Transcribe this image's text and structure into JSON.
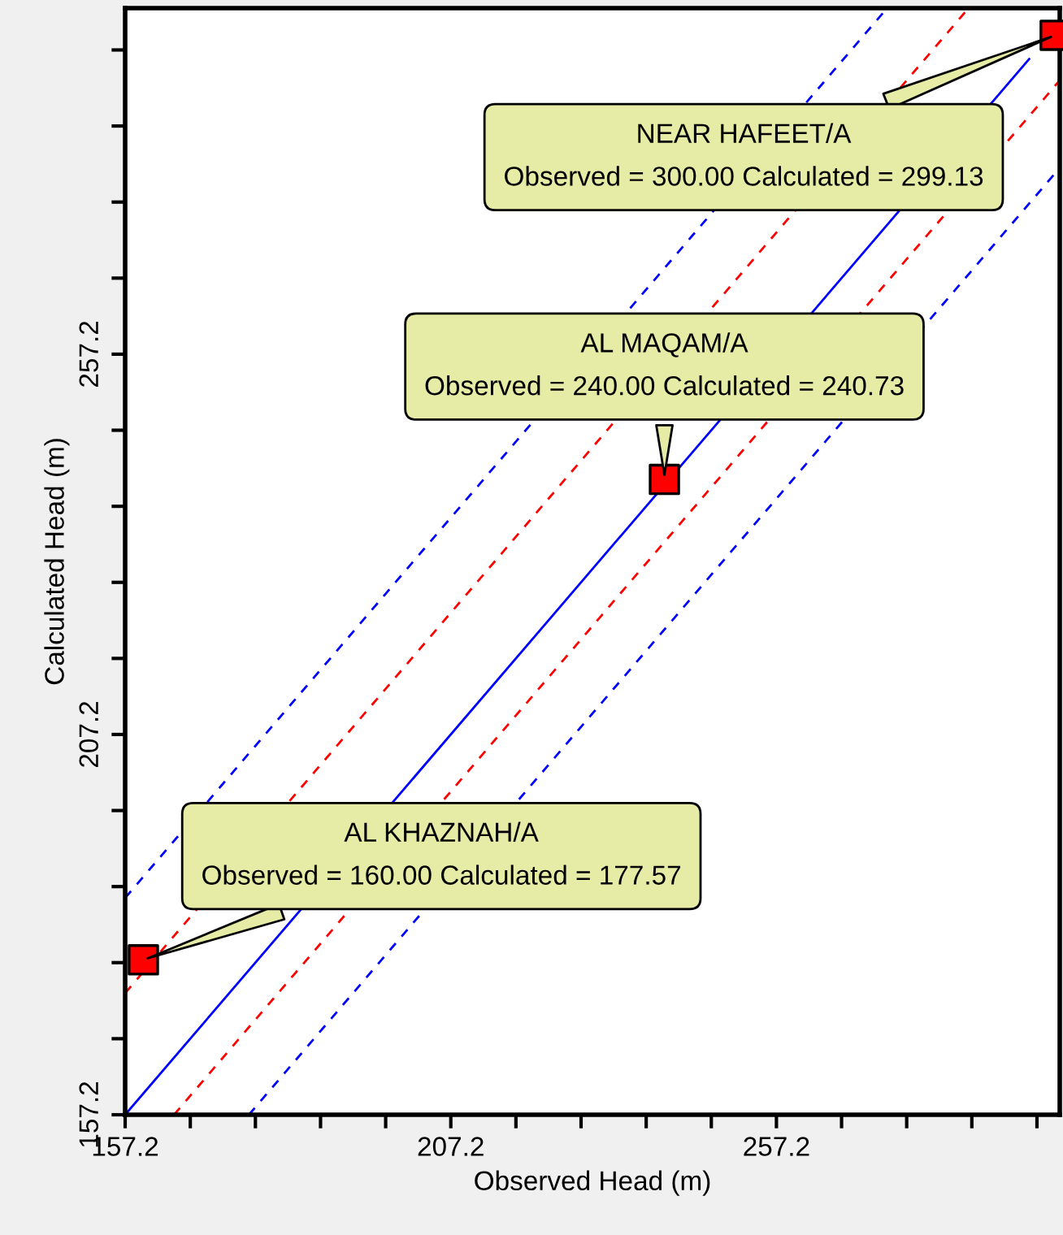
{
  "chart_data": {
    "type": "scatter",
    "xlabel": "Observed Head (m)",
    "ylabel": "Calculated Head (m)",
    "xlim": [
      157.2,
      300.7
    ],
    "ylim": [
      157.2,
      302.7
    ],
    "xticks": [
      157.2,
      {
        "value": 167.2,
        "label": null
      },
      {
        "value": 177.2,
        "label": null
      },
      {
        "value": 187.2,
        "label": null
      },
      {
        "value": 197.2,
        "label": null
      },
      207.2,
      {
        "value": 217.2,
        "label": null
      },
      {
        "value": 227.2,
        "label": null
      },
      {
        "value": 237.2,
        "label": null
      },
      {
        "value": 247.2,
        "label": null
      },
      257.2,
      {
        "value": 267.2,
        "label": null
      },
      {
        "value": 277.2,
        "label": null
      },
      {
        "value": 287.2,
        "label": null
      },
      {
        "value": 297.2,
        "label": null
      }
    ],
    "yticks": [
      157.2,
      {
        "value": 167.2,
        "label": null
      },
      {
        "value": 177.2,
        "label": null
      },
      {
        "value": 187.2,
        "label": null
      },
      {
        "value": 197.2,
        "label": null
      },
      207.2,
      {
        "value": 217.2,
        "label": null
      },
      {
        "value": 227.2,
        "label": null
      },
      {
        "value": 237.2,
        "label": null
      },
      {
        "value": 247.2,
        "label": null
      },
      257.2,
      {
        "value": 267.2,
        "label": null
      },
      {
        "value": 277.2,
        "label": null
      },
      {
        "value": 287.2,
        "label": null
      },
      {
        "value": 297.2,
        "label": null
      }
    ],
    "grid": false,
    "legend": false,
    "series": [
      {
        "type": "line",
        "color": "#0000ff",
        "line_style": "solid",
        "x": [
          157.2,
          296
        ],
        "values": [
          157.2,
          296
        ]
      },
      {
        "type": "line",
        "color": "#ff0000",
        "line_style": "dashed",
        "x": [
          157.2,
          286.7
        ],
        "values": [
          173.2,
          302.7
        ]
      },
      {
        "type": "line",
        "color": "#ff0000",
        "line_style": "dashed",
        "x": [
          164.7,
          300.7
        ],
        "values": [
          157.2,
          293.2
        ]
      },
      {
        "type": "line",
        "color": "#0000ff",
        "line_style": "dashed",
        "x": [
          157.2,
          274.2
        ],
        "values": [
          185.7,
          302.7
        ]
      },
      {
        "type": "line",
        "color": "#0000ff",
        "line_style": "dashed",
        "x": [
          176.2,
          300.7
        ],
        "values": [
          157.2,
          281.7
        ]
      },
      {
        "color": "#ff0000",
        "marker": "square",
        "x": [
          160,
          240,
          300
        ],
        "values": [
          177.57,
          240.73,
          299.13
        ]
      }
    ],
    "annotations": [
      {
        "text": "NEAR HAFEET/A\nObserved = 300.00 Calculated = 299.13",
        "x": 300,
        "y": 299.13
      },
      {
        "text": "AL MAQAM/A\nObserved = 240.00 Calculated = 240.73",
        "x": 240,
        "y": 240.73
      },
      {
        "text": "AL KHAZNAH/A\nObserved = 160.00 Calculated = 177.57",
        "x": 160,
        "y": 177.57
      }
    ]
  }
}
